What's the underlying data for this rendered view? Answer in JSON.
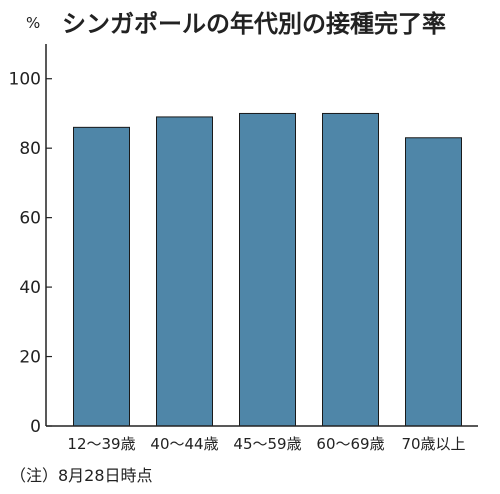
{
  "chart_data": {
    "type": "bar",
    "title": "シンガポールの年代別の接種完了率",
    "ylabel": "%",
    "categories": [
      "12～39歳",
      "40～44歳",
      "45～59歳",
      "60～69歳",
      "70歳以上"
    ],
    "values": [
      86,
      89,
      90,
      90,
      83
    ],
    "ylim": [
      0,
      110
    ],
    "yticks": [
      0,
      20,
      40,
      60,
      80,
      100
    ],
    "grid": false,
    "bar_color": "#4f86a8",
    "note": "（注）8月28日時点"
  }
}
